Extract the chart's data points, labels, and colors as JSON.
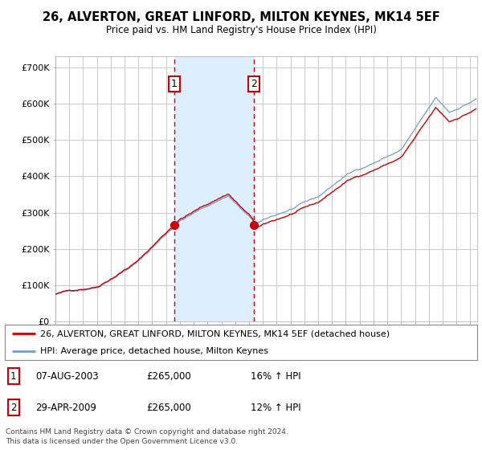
{
  "title": "26, ALVERTON, GREAT LINFORD, MILTON KEYNES, MK14 5EF",
  "subtitle": "Price paid vs. HM Land Registry's House Price Index (HPI)",
  "background_color": "#ffffff",
  "plot_bg_color": "#ffffff",
  "grid_color": "#cccccc",
  "highlight_color": "#ddeeff",
  "ylim": [
    0,
    730000
  ],
  "yticks": [
    0,
    100000,
    200000,
    300000,
    400000,
    500000,
    600000,
    700000
  ],
  "ytick_labels": [
    "£0",
    "£100K",
    "£200K",
    "£300K",
    "£400K",
    "£500K",
    "£600K",
    "£700K"
  ],
  "xlim_start": 1995,
  "xlim_end": 2025.5,
  "sale1_date": 2003.6,
  "sale1_price": 265000,
  "sale1_label": "1",
  "sale1_info": "07-AUG-2003",
  "sale1_amount": "£265,000",
  "sale1_hpi": "16% ↑ HPI",
  "sale2_date": 2009.33,
  "sale2_price": 265000,
  "sale2_label": "2",
  "sale2_info": "29-APR-2009",
  "sale2_amount": "£265,000",
  "sale2_hpi": "12% ↑ HPI",
  "legend_line1": "26, ALVERTON, GREAT LINFORD, MILTON KEYNES, MK14 5EF (detached house)",
  "legend_line2": "HPI: Average price, detached house, Milton Keynes",
  "footer": "Contains HM Land Registry data © Crown copyright and database right 2024.\nThis data is licensed under the Open Government Licence v3.0.",
  "red_line_color": "#cc0000",
  "blue_line_color": "#7799cc",
  "vline_color": "#cc0000",
  "label_box_color": "#cc0000"
}
